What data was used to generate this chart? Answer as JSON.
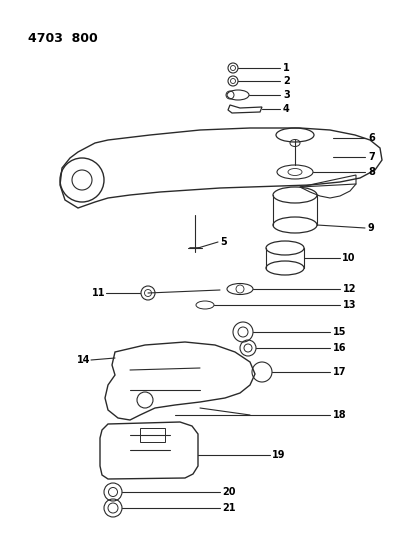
{
  "title": "4703  800",
  "background_color": "#ffffff",
  "line_color": "#2a2a2a",
  "text_color": "#000000",
  "figsize": [
    4.08,
    5.33
  ],
  "dpi": 100
}
